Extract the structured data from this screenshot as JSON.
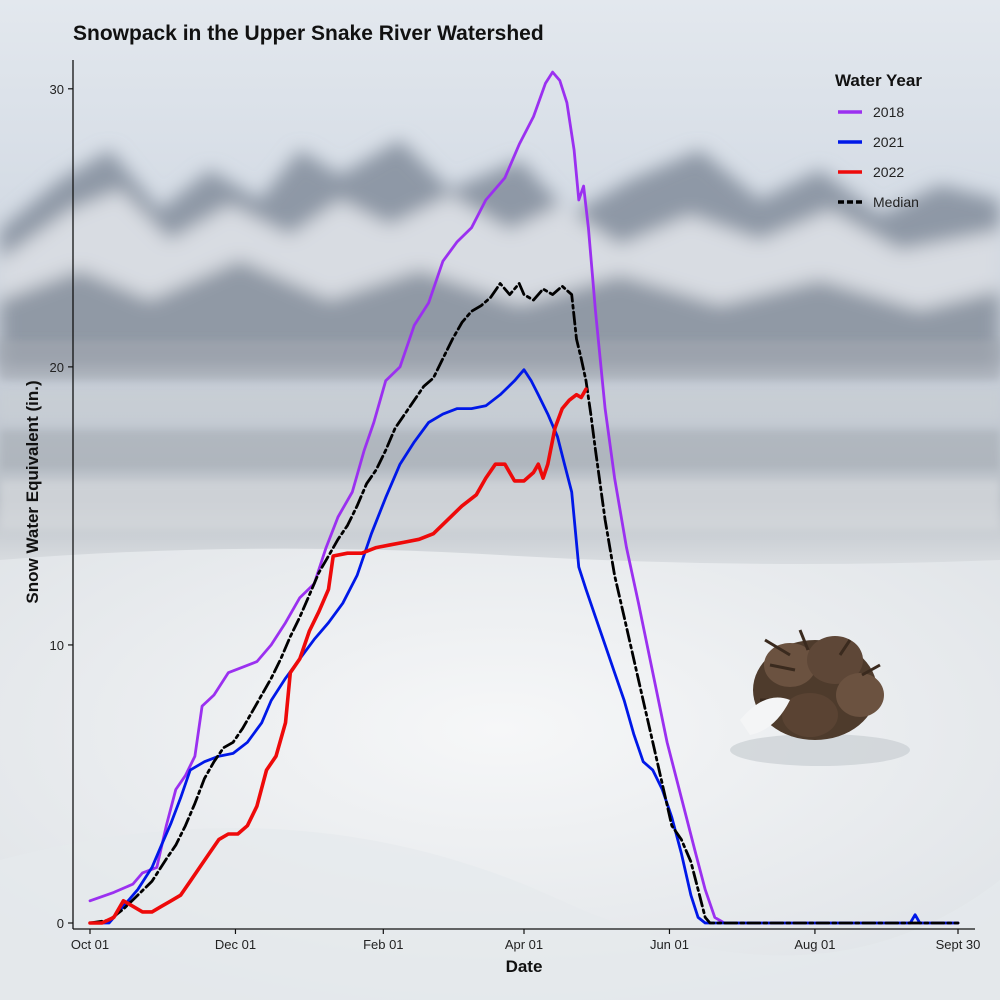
{
  "chart_data": {
    "type": "line",
    "title": "Snowpack in the Upper Snake River Watershed",
    "xlabel": "Date",
    "ylabel": "Snow Water Equivalent (in.)",
    "xlim": [
      "Oct 01",
      "Sept 30"
    ],
    "ylim": [
      0,
      31
    ],
    "x_ticks": [
      {
        "label": "Oct 01",
        "day": 0
      },
      {
        "label": "Dec 01",
        "day": 61
      },
      {
        "label": "Feb 01",
        "day": 123
      },
      {
        "label": "Apr 01",
        "day": 182
      },
      {
        "label": "Jun 01",
        "day": 243
      },
      {
        "label": "Aug 01",
        "day": 304
      },
      {
        "label": "Sept 30",
        "day": 364
      }
    ],
    "y_ticks": [
      0,
      10,
      20,
      30
    ],
    "grid": false,
    "legend": {
      "title": "Water Year",
      "position": "top-right"
    },
    "x_unit_note": "x values are day of water year (0 = Oct 01)",
    "series": [
      {
        "name": "2018",
        "color": "#9b30f0",
        "dash": "solid",
        "points": [
          [
            0,
            0.8
          ],
          [
            10,
            1.1
          ],
          [
            18,
            1.4
          ],
          [
            22,
            1.8
          ],
          [
            28,
            2.0
          ],
          [
            32,
            3.5
          ],
          [
            36,
            4.8
          ],
          [
            40,
            5.3
          ],
          [
            44,
            6.0
          ],
          [
            47,
            7.8
          ],
          [
            52,
            8.2
          ],
          [
            58,
            9.0
          ],
          [
            64,
            9.2
          ],
          [
            70,
            9.4
          ],
          [
            76,
            10.0
          ],
          [
            82,
            10.8
          ],
          [
            88,
            11.7
          ],
          [
            94,
            12.2
          ],
          [
            99,
            13.5
          ],
          [
            104,
            14.6
          ],
          [
            110,
            15.5
          ],
          [
            115,
            17.0
          ],
          [
            119,
            18.0
          ],
          [
            124,
            19.5
          ],
          [
            130,
            20.0
          ],
          [
            136,
            21.5
          ],
          [
            142,
            22.3
          ],
          [
            148,
            23.8
          ],
          [
            154,
            24.5
          ],
          [
            160,
            25.0
          ],
          [
            166,
            26.0
          ],
          [
            174,
            26.8
          ],
          [
            180,
            28.0
          ],
          [
            186,
            29.0
          ],
          [
            191,
            30.2
          ],
          [
            194,
            30.6
          ],
          [
            197,
            30.3
          ],
          [
            200,
            29.5
          ],
          [
            203,
            27.8
          ],
          [
            205,
            26.0
          ],
          [
            207,
            26.5
          ],
          [
            209,
            25.0
          ],
          [
            212,
            22.0
          ],
          [
            216,
            18.5
          ],
          [
            220,
            16.0
          ],
          [
            225,
            13.5
          ],
          [
            230,
            11.5
          ],
          [
            236,
            9.0
          ],
          [
            242,
            6.5
          ],
          [
            248,
            4.5
          ],
          [
            254,
            2.5
          ],
          [
            258,
            1.2
          ],
          [
            262,
            0.2
          ],
          [
            266,
            0
          ],
          [
            300,
            0
          ],
          [
            364,
            0
          ]
        ]
      },
      {
        "name": "2021",
        "color": "#0018e8",
        "dash": "solid",
        "points": [
          [
            0,
            0
          ],
          [
            8,
            0
          ],
          [
            14,
            0.6
          ],
          [
            20,
            1.2
          ],
          [
            26,
            2.0
          ],
          [
            30,
            2.8
          ],
          [
            34,
            3.6
          ],
          [
            38,
            4.5
          ],
          [
            42,
            5.5
          ],
          [
            48,
            5.8
          ],
          [
            54,
            6.0
          ],
          [
            60,
            6.1
          ],
          [
            66,
            6.5
          ],
          [
            72,
            7.2
          ],
          [
            76,
            8.0
          ],
          [
            82,
            8.8
          ],
          [
            88,
            9.5
          ],
          [
            94,
            10.2
          ],
          [
            100,
            10.8
          ],
          [
            106,
            11.5
          ],
          [
            112,
            12.5
          ],
          [
            118,
            14.0
          ],
          [
            124,
            15.3
          ],
          [
            130,
            16.5
          ],
          [
            136,
            17.3
          ],
          [
            142,
            18.0
          ],
          [
            148,
            18.3
          ],
          [
            154,
            18.5
          ],
          [
            160,
            18.5
          ],
          [
            166,
            18.6
          ],
          [
            172,
            19.0
          ],
          [
            178,
            19.5
          ],
          [
            182,
            19.9
          ],
          [
            185,
            19.5
          ],
          [
            188,
            19.0
          ],
          [
            192,
            18.3
          ],
          [
            196,
            17.5
          ],
          [
            199,
            16.5
          ],
          [
            202,
            15.5
          ],
          [
            205,
            12.8
          ],
          [
            208,
            12.0
          ],
          [
            212,
            11.0
          ],
          [
            216,
            10.0
          ],
          [
            220,
            9.0
          ],
          [
            224,
            8.0
          ],
          [
            228,
            6.8
          ],
          [
            232,
            5.8
          ],
          [
            236,
            5.5
          ],
          [
            240,
            4.8
          ],
          [
            244,
            3.8
          ],
          [
            248,
            2.5
          ],
          [
            252,
            1.0
          ],
          [
            255,
            0.2
          ],
          [
            258,
            0
          ],
          [
            320,
            0
          ],
          [
            344,
            0
          ],
          [
            346,
            0.3
          ],
          [
            348,
            0
          ],
          [
            364,
            0
          ]
        ]
      },
      {
        "name": "2022",
        "color": "#ee0a0a",
        "dash": "solid",
        "points": [
          [
            0,
            0
          ],
          [
            5,
            0
          ],
          [
            10,
            0.2
          ],
          [
            14,
            0.8
          ],
          [
            18,
            0.6
          ],
          [
            22,
            0.4
          ],
          [
            26,
            0.4
          ],
          [
            30,
            0.6
          ],
          [
            34,
            0.8
          ],
          [
            38,
            1.0
          ],
          [
            42,
            1.5
          ],
          [
            46,
            2.0
          ],
          [
            50,
            2.5
          ],
          [
            54,
            3.0
          ],
          [
            58,
            3.2
          ],
          [
            62,
            3.2
          ],
          [
            66,
            3.5
          ],
          [
            70,
            4.2
          ],
          [
            74,
            5.5
          ],
          [
            78,
            6.0
          ],
          [
            82,
            7.2
          ],
          [
            84,
            9.0
          ],
          [
            88,
            9.5
          ],
          [
            92,
            10.5
          ],
          [
            96,
            11.2
          ],
          [
            100,
            12.0
          ],
          [
            102,
            13.2
          ],
          [
            108,
            13.3
          ],
          [
            114,
            13.3
          ],
          [
            120,
            13.5
          ],
          [
            126,
            13.6
          ],
          [
            132,
            13.7
          ],
          [
            138,
            13.8
          ],
          [
            144,
            14.0
          ],
          [
            150,
            14.5
          ],
          [
            156,
            15.0
          ],
          [
            162,
            15.4
          ],
          [
            166,
            16.0
          ],
          [
            170,
            16.5
          ],
          [
            174,
            16.5
          ],
          [
            178,
            15.9
          ],
          [
            182,
            15.9
          ],
          [
            186,
            16.2
          ],
          [
            188,
            16.5
          ],
          [
            190,
            16.0
          ],
          [
            192,
            16.5
          ],
          [
            195,
            17.8
          ],
          [
            198,
            18.5
          ],
          [
            201,
            18.8
          ],
          [
            204,
            19.0
          ],
          [
            206,
            18.9
          ],
          [
            208,
            19.2
          ]
        ]
      },
      {
        "name": "Median",
        "color": "#000000",
        "dash": "dashed",
        "points": [
          [
            0,
            0
          ],
          [
            8,
            0.1
          ],
          [
            14,
            0.5
          ],
          [
            20,
            1.0
          ],
          [
            26,
            1.5
          ],
          [
            32,
            2.3
          ],
          [
            36,
            2.8
          ],
          [
            40,
            3.5
          ],
          [
            44,
            4.3
          ],
          [
            48,
            5.2
          ],
          [
            52,
            5.8
          ],
          [
            56,
            6.3
          ],
          [
            60,
            6.5
          ],
          [
            64,
            7.0
          ],
          [
            68,
            7.6
          ],
          [
            72,
            8.2
          ],
          [
            76,
            8.8
          ],
          [
            80,
            9.5
          ],
          [
            84,
            10.3
          ],
          [
            88,
            11.0
          ],
          [
            92,
            11.8
          ],
          [
            96,
            12.6
          ],
          [
            100,
            13.2
          ],
          [
            104,
            13.8
          ],
          [
            108,
            14.3
          ],
          [
            112,
            15.0
          ],
          [
            116,
            15.8
          ],
          [
            120,
            16.3
          ],
          [
            124,
            17.0
          ],
          [
            128,
            17.8
          ],
          [
            132,
            18.3
          ],
          [
            136,
            18.8
          ],
          [
            140,
            19.3
          ],
          [
            144,
            19.6
          ],
          [
            148,
            20.3
          ],
          [
            152,
            21.0
          ],
          [
            156,
            21.6
          ],
          [
            160,
            22.0
          ],
          [
            164,
            22.2
          ],
          [
            168,
            22.5
          ],
          [
            172,
            23.0
          ],
          [
            176,
            22.6
          ],
          [
            180,
            23.0
          ],
          [
            182,
            22.6
          ],
          [
            186,
            22.4
          ],
          [
            190,
            22.8
          ],
          [
            194,
            22.6
          ],
          [
            198,
            22.9
          ],
          [
            202,
            22.6
          ],
          [
            204,
            21.0
          ],
          [
            206,
            20.3
          ],
          [
            208,
            19.5
          ],
          [
            210,
            18.3
          ],
          [
            212,
            17.0
          ],
          [
            216,
            14.5
          ],
          [
            220,
            12.5
          ],
          [
            224,
            11.0
          ],
          [
            228,
            9.5
          ],
          [
            232,
            8.0
          ],
          [
            236,
            6.5
          ],
          [
            240,
            5.0
          ],
          [
            244,
            3.5
          ],
          [
            248,
            3.0
          ],
          [
            252,
            2.2
          ],
          [
            255,
            1.2
          ],
          [
            258,
            0.2
          ],
          [
            260,
            0
          ],
          [
            300,
            0
          ],
          [
            364,
            0
          ]
        ]
      }
    ]
  }
}
